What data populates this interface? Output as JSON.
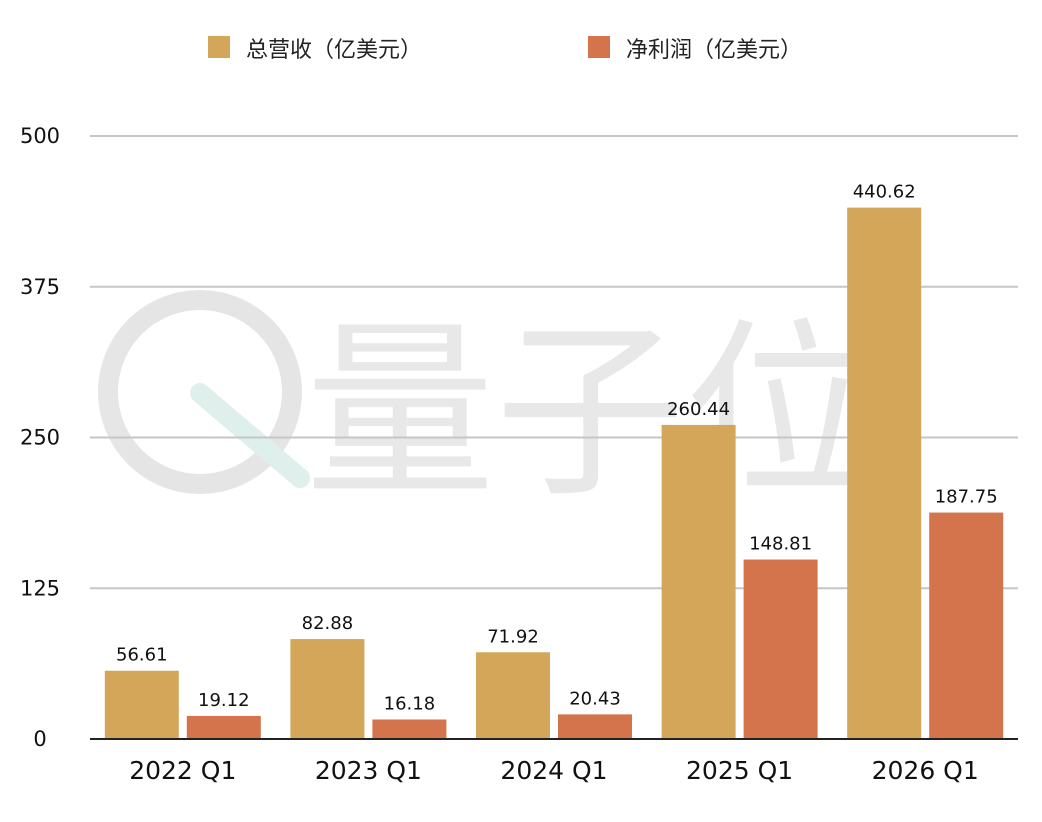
{
  "chart_data": {
    "type": "bar",
    "categories": [
      "2022 Q1",
      "2023 Q1",
      "2024 Q1",
      "2025 Q1",
      "2026 Q1"
    ],
    "series": [
      {
        "name": "总营收（亿美元）",
        "values": [
          56.61,
          82.88,
          71.92,
          260.44,
          440.62
        ],
        "color": "#D4A65A"
      },
      {
        "name": "净利润（亿美元）",
        "values": [
          19.12,
          16.18,
          20.43,
          148.81,
          187.75
        ],
        "color": "#D3744D"
      }
    ],
    "value_labels": [
      [
        "56.61",
        "82.88",
        "71.92",
        "260.44",
        "440.62"
      ],
      [
        "19.12",
        "16.18",
        "20.43",
        "148.81",
        "187.75"
      ]
    ],
    "y_ticks": [
      "0",
      "125",
      "250",
      "375",
      "500"
    ],
    "ylim": [
      0,
      500
    ],
    "grid": true,
    "legend_position": "top-center",
    "title": "",
    "xlabel": "",
    "ylabel": ""
  },
  "watermark": {
    "text": "量子位",
    "color": "#E4E4E4"
  }
}
